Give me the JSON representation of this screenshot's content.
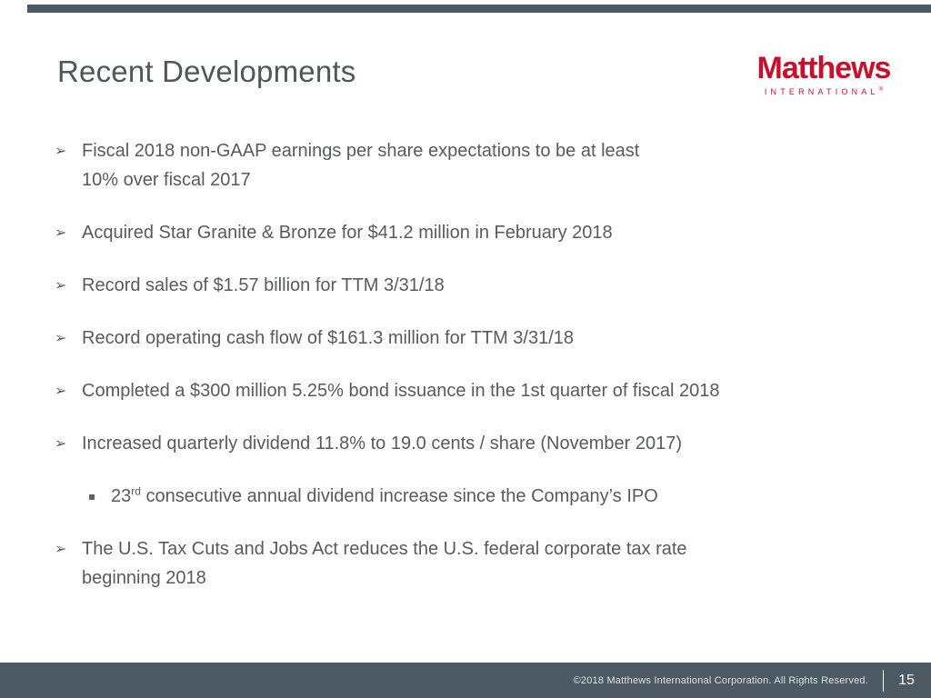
{
  "slide": {
    "accent_bar_color": "#4d5a63",
    "title": "Recent Developments",
    "logo": {
      "brand": "Matthews",
      "sub": "INTERNATIONAL",
      "registered": "®",
      "color": "#c8102e"
    },
    "bullet_glyph": "➢",
    "sub_bullet_glyph": "▪",
    "bullets": [
      {
        "lines": [
          "Fiscal 2018 non-GAAP earnings per share expectations to be at least",
          "10% over fiscal 2017"
        ]
      },
      {
        "lines": [
          "Acquired Star Granite & Bronze for $41.2 million in February 2018"
        ]
      },
      {
        "lines": [
          "Record sales of $1.57 billion for TTM 3/31/18"
        ]
      },
      {
        "lines": [
          "Record operating cash flow of $161.3 million for TTM 3/31/18"
        ]
      },
      {
        "lines": [
          "Completed a $300 million 5.25% bond issuance in the 1st quarter of fiscal 2018"
        ]
      },
      {
        "lines": [
          "Increased quarterly dividend 11.8% to 19.0 cents / share (November 2017)"
        ]
      },
      {
        "lines": [
          "The U.S. Tax Cuts and Jobs Act reduces the U.S. federal corporate tax rate",
          "beginning 2018"
        ]
      }
    ],
    "sub_bullet": {
      "prefix": "23",
      "superscript": "rd",
      "rest": " consecutive annual dividend increase since the Company’s IPO"
    },
    "footer": {
      "copyright": "©2018 Matthews International Corporation. All Rights Reserved.",
      "page_number": "15"
    }
  }
}
